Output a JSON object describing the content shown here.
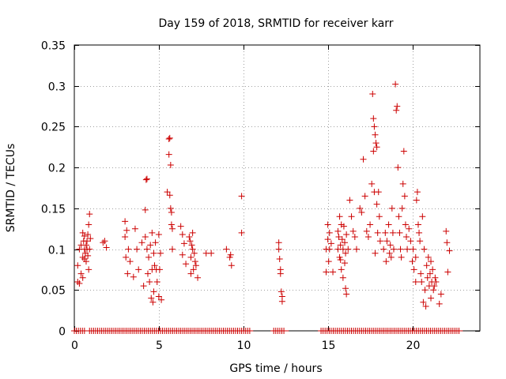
{
  "chart_data": {
    "type": "scatter",
    "title": "Day 159 of 2018, SRMTID for receiver karr",
    "xlabel": "GPS time / hours",
    "ylabel": "SRMTID / TECUs",
    "xlim": [
      0,
      24
    ],
    "ylim": [
      0,
      0.35
    ],
    "x_ticks": [
      0,
      5,
      10,
      15,
      20
    ],
    "x_tick_labels": [
      "0",
      "5",
      "10",
      "15",
      "20"
    ],
    "y_ticks": [
      0,
      0.05,
      0.1,
      0.15,
      0.2,
      0.25,
      0.3,
      0.35
    ],
    "y_tick_labels": [
      "0",
      "0.05",
      "0.1",
      "0.15",
      "0.2",
      "0.25",
      "0.3",
      "0.35"
    ],
    "grid": true,
    "legend": "none",
    "marker": "+",
    "color": "#cc0000",
    "zero_ranges": [
      [
        0.0,
        0.6
      ],
      [
        0.9,
        10.4
      ],
      [
        11.8,
        12.5
      ],
      [
        14.6,
        22.8
      ]
    ],
    "series": [
      {
        "name": "SRMTID",
        "points": [
          [
            0.2,
            0.08
          ],
          [
            0.2,
            0.06
          ],
          [
            0.3,
            0.1
          ],
          [
            0.3,
            0.058
          ],
          [
            0.4,
            0.105
          ],
          [
            0.4,
            0.07
          ],
          [
            0.5,
            0.12
          ],
          [
            0.5,
            0.065
          ],
          [
            0.5,
            0.09
          ],
          [
            0.55,
            0.11
          ],
          [
            0.6,
            0.1
          ],
          [
            0.6,
            0.088
          ],
          [
            0.6,
            0.116
          ],
          [
            0.65,
            0.095
          ],
          [
            0.7,
            0.105
          ],
          [
            0.7,
            0.085
          ],
          [
            0.75,
            0.1
          ],
          [
            0.75,
            0.11
          ],
          [
            0.8,
            0.092
          ],
          [
            0.8,
            0.118
          ],
          [
            0.85,
            0.13
          ],
          [
            0.85,
            0.075
          ],
          [
            0.9,
            0.143
          ],
          [
            0.9,
            0.1
          ],
          [
            0.95,
            0.113
          ],
          [
            1.7,
            0.108
          ],
          [
            1.8,
            0.11
          ],
          [
            1.9,
            0.102
          ],
          [
            3.0,
            0.134
          ],
          [
            3.0,
            0.115
          ],
          [
            3.05,
            0.09
          ],
          [
            3.1,
            0.123
          ],
          [
            3.15,
            0.07
          ],
          [
            3.2,
            0.1
          ],
          [
            3.3,
            0.085
          ],
          [
            3.5,
            0.066
          ],
          [
            3.6,
            0.125
          ],
          [
            3.7,
            0.1
          ],
          [
            3.8,
            0.075
          ],
          [
            4.0,
            0.108
          ],
          [
            4.1,
            0.055
          ],
          [
            4.2,
            0.148
          ],
          [
            4.2,
            0.115
          ],
          [
            4.25,
            0.185
          ],
          [
            4.3,
            0.186
          ],
          [
            4.3,
            0.1
          ],
          [
            4.35,
            0.07
          ],
          [
            4.4,
            0.09
          ],
          [
            4.45,
            0.06
          ],
          [
            4.5,
            0.105
          ],
          [
            4.55,
            0.04
          ],
          [
            4.6,
            0.12
          ],
          [
            4.6,
            0.075
          ],
          [
            4.65,
            0.035
          ],
          [
            4.7,
            0.095
          ],
          [
            4.7,
            0.048
          ],
          [
            4.75,
            0.08
          ],
          [
            4.8,
            0.108
          ],
          [
            4.85,
            0.075
          ],
          [
            4.9,
            0.06
          ],
          [
            5.0,
            0.118
          ],
          [
            5.0,
            0.042
          ],
          [
            5.05,
            0.075
          ],
          [
            5.1,
            0.095
          ],
          [
            5.15,
            0.038
          ],
          [
            5.5,
            0.17
          ],
          [
            5.6,
            0.235
          ],
          [
            5.6,
            0.216
          ],
          [
            5.65,
            0.236
          ],
          [
            5.65,
            0.166
          ],
          [
            5.7,
            0.203
          ],
          [
            5.7,
            0.15
          ],
          [
            5.75,
            0.145
          ],
          [
            5.75,
            0.13
          ],
          [
            5.8,
            0.125
          ],
          [
            5.8,
            0.1
          ],
          [
            6.3,
            0.128
          ],
          [
            6.4,
            0.118
          ],
          [
            6.4,
            0.093
          ],
          [
            6.5,
            0.107
          ],
          [
            6.6,
            0.082
          ],
          [
            6.8,
            0.115
          ],
          [
            6.85,
            0.11
          ],
          [
            6.9,
            0.09
          ],
          [
            6.9,
            0.07
          ],
          [
            6.95,
            0.105
          ],
          [
            7.0,
            0.12
          ],
          [
            7.0,
            0.1
          ],
          [
            7.05,
            0.075
          ],
          [
            7.1,
            0.095
          ],
          [
            7.15,
            0.085
          ],
          [
            7.2,
            0.08
          ],
          [
            7.3,
            0.065
          ],
          [
            7.8,
            0.095
          ],
          [
            8.1,
            0.095
          ],
          [
            9.0,
            0.1
          ],
          [
            9.2,
            0.09
          ],
          [
            9.25,
            0.093
          ],
          [
            9.3,
            0.08
          ],
          [
            9.9,
            0.165
          ],
          [
            9.9,
            0.12
          ],
          [
            12.1,
            0.108
          ],
          [
            12.1,
            0.1
          ],
          [
            12.15,
            0.088
          ],
          [
            12.2,
            0.075
          ],
          [
            12.2,
            0.07
          ],
          [
            12.25,
            0.048
          ],
          [
            12.3,
            0.036
          ],
          [
            12.3,
            0.042
          ],
          [
            14.9,
            0.1
          ],
          [
            14.9,
            0.072
          ],
          [
            15.0,
            0.13
          ],
          [
            15.0,
            0.112
          ],
          [
            15.05,
            0.085
          ],
          [
            15.1,
            0.1
          ],
          [
            15.1,
            0.12
          ],
          [
            15.2,
            0.107
          ],
          [
            15.3,
            0.072
          ],
          [
            15.6,
            0.122
          ],
          [
            15.6,
            0.1
          ],
          [
            15.65,
            0.115
          ],
          [
            15.7,
            0.14
          ],
          [
            15.7,
            0.09
          ],
          [
            15.75,
            0.105
          ],
          [
            15.75,
            0.087
          ],
          [
            15.8,
            0.13
          ],
          [
            15.8,
            0.075
          ],
          [
            15.85,
            0.112
          ],
          [
            15.9,
            0.1
          ],
          [
            15.9,
            0.065
          ],
          [
            15.95,
            0.128
          ],
          [
            16.0,
            0.083
          ],
          [
            16.0,
            0.108
          ],
          [
            16.05,
            0.095
          ],
          [
            16.05,
            0.052
          ],
          [
            16.1,
            0.045
          ],
          [
            16.1,
            0.118
          ],
          [
            16.2,
            0.1
          ],
          [
            16.3,
            0.16
          ],
          [
            16.4,
            0.14
          ],
          [
            16.5,
            0.122
          ],
          [
            16.6,
            0.115
          ],
          [
            16.7,
            0.1
          ],
          [
            16.9,
            0.15
          ],
          [
            17.0,
            0.145
          ],
          [
            17.1,
            0.21
          ],
          [
            17.2,
            0.165
          ],
          [
            17.3,
            0.122
          ],
          [
            17.4,
            0.115
          ],
          [
            17.5,
            0.13
          ],
          [
            17.6,
            0.18
          ],
          [
            17.65,
            0.29
          ],
          [
            17.7,
            0.26
          ],
          [
            17.7,
            0.22
          ],
          [
            17.75,
            0.25
          ],
          [
            17.75,
            0.17
          ],
          [
            17.8,
            0.24
          ],
          [
            17.8,
            0.095
          ],
          [
            17.85,
            0.23
          ],
          [
            17.9,
            0.225
          ],
          [
            17.9,
            0.155
          ],
          [
            17.95,
            0.12
          ],
          [
            18.0,
            0.17
          ],
          [
            18.05,
            0.14
          ],
          [
            18.1,
            0.11
          ],
          [
            18.3,
            0.1
          ],
          [
            18.4,
            0.12
          ],
          [
            18.45,
            0.085
          ],
          [
            18.5,
            0.11
          ],
          [
            18.6,
            0.13
          ],
          [
            18.65,
            0.095
          ],
          [
            18.7,
            0.105
          ],
          [
            18.75,
            0.09
          ],
          [
            18.8,
            0.15
          ],
          [
            18.85,
            0.12
          ],
          [
            18.9,
            0.1
          ],
          [
            19.0,
            0.302
          ],
          [
            19.05,
            0.27
          ],
          [
            19.1,
            0.275
          ],
          [
            19.15,
            0.2
          ],
          [
            19.2,
            0.14
          ],
          [
            19.25,
            0.12
          ],
          [
            19.3,
            0.1
          ],
          [
            19.35,
            0.09
          ],
          [
            19.4,
            0.15
          ],
          [
            19.45,
            0.18
          ],
          [
            19.5,
            0.22
          ],
          [
            19.55,
            0.165
          ],
          [
            19.6,
            0.13
          ],
          [
            19.65,
            0.115
          ],
          [
            19.7,
            0.1
          ],
          [
            19.8,
            0.125
          ],
          [
            19.9,
            0.11
          ],
          [
            20.0,
            0.085
          ],
          [
            20.05,
            0.1
          ],
          [
            20.1,
            0.075
          ],
          [
            20.2,
            0.06
          ],
          [
            20.2,
            0.09
          ],
          [
            20.25,
            0.16
          ],
          [
            20.3,
            0.17
          ],
          [
            20.35,
            0.13
          ],
          [
            20.4,
            0.12
          ],
          [
            20.45,
            0.11
          ],
          [
            20.5,
            0.07
          ],
          [
            20.55,
            0.06
          ],
          [
            20.6,
            0.14
          ],
          [
            20.65,
            0.035
          ],
          [
            20.7,
            0.1
          ],
          [
            20.75,
            0.05
          ],
          [
            20.8,
            0.03
          ],
          [
            20.85,
            0.08
          ],
          [
            20.9,
            0.065
          ],
          [
            20.95,
            0.09
          ],
          [
            21.0,
            0.055
          ],
          [
            21.05,
            0.07
          ],
          [
            21.1,
            0.085
          ],
          [
            21.1,
            0.04
          ],
          [
            21.15,
            0.06
          ],
          [
            21.2,
            0.075
          ],
          [
            21.25,
            0.05
          ],
          [
            21.3,
            0.055
          ],
          [
            21.35,
            0.065
          ],
          [
            21.4,
            0.06
          ],
          [
            21.6,
            0.033
          ],
          [
            21.7,
            0.045
          ],
          [
            22.0,
            0.122
          ],
          [
            22.05,
            0.108
          ],
          [
            22.1,
            0.072
          ],
          [
            22.2,
            0.098
          ]
        ]
      }
    ]
  }
}
